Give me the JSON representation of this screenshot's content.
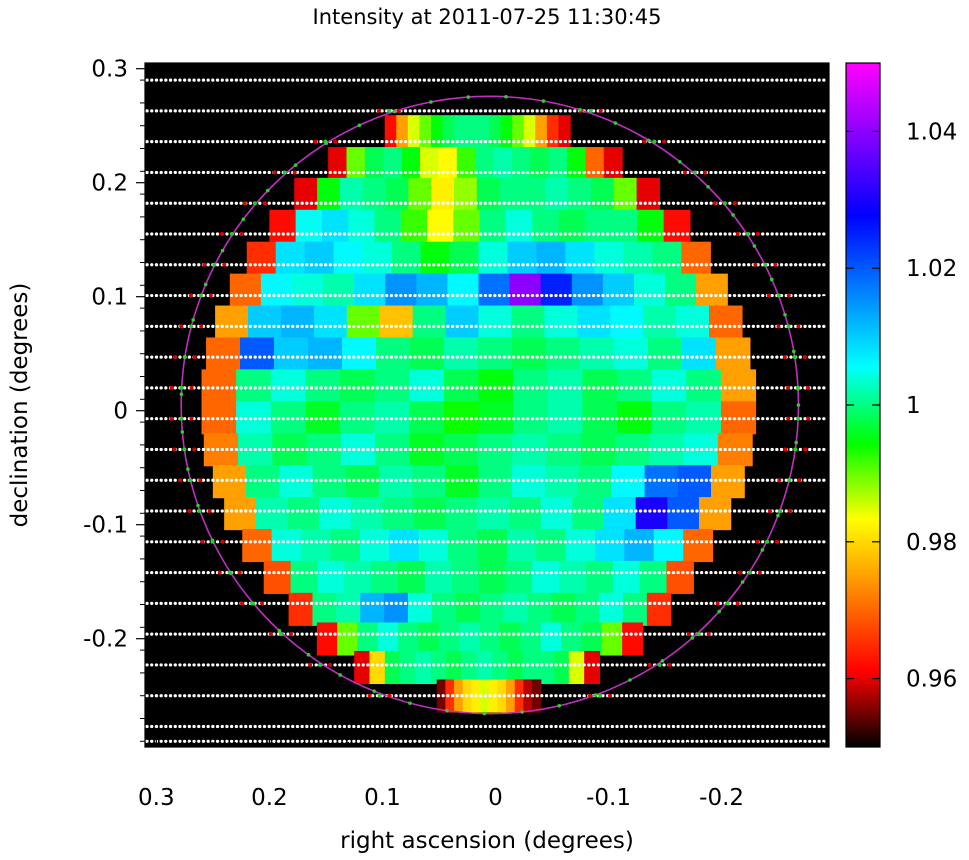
{
  "chart_data": {
    "type": "heatmap",
    "title": "Intensity at 2011-07-25 11:30:45",
    "xlabel": "right ascension (degrees)",
    "ylabel": "declination (degrees)",
    "xlim": [
      0.31,
      -0.295
    ],
    "ylim": [
      -0.295,
      0.305
    ],
    "xticks": [
      "0.3",
      "0.2",
      "0.1",
      "0",
      "-0.1",
      "-0.2"
    ],
    "xtick_values": [
      0.3,
      0.2,
      0.1,
      0,
      -0.1,
      -0.2
    ],
    "yticks": [
      "0.3",
      "0.2",
      "0.1",
      "0",
      "-0.1",
      "-0.2"
    ],
    "ytick_values": [
      0.3,
      0.2,
      0.1,
      0,
      -0.1,
      -0.2
    ],
    "colorbar": {
      "min": 0.95,
      "max": 1.05,
      "ticks": [
        "0.96",
        "0.98",
        "1",
        "1.02",
        "1.04"
      ],
      "tick_values": [
        0.96,
        0.98,
        1.0,
        1.02,
        1.04
      ],
      "colormap": [
        "#000000",
        "#ff0000",
        "#ff8000",
        "#ffff00",
        "#00ff00",
        "#00ffff",
        "#0080ff",
        "#0000ff",
        "#8000ff",
        "#ff00ff"
      ]
    },
    "disk": {
      "center_ra": 0.005,
      "center_dec": 0.005,
      "radius": 0.273
    },
    "limb_circle_color": "#c030c0",
    "scan_dec": [
      0.29,
      0.263,
      0.236,
      0.209,
      0.182,
      0.155,
      0.128,
      0.101,
      0.074,
      0.047,
      0.02,
      -0.007,
      -0.034,
      -0.061,
      -0.088,
      -0.115,
      -0.142,
      -0.169,
      -0.196,
      -0.223,
      -0.25,
      -0.277,
      -0.29
    ],
    "rows": [
      {
        "dec": 0.245,
        "ra_min": -0.066,
        "ra_max": 0.098,
        "values": [
          0.962,
          0.975,
          0.985,
          0.99,
          0.995,
          0.998,
          1.0,
          1.0,
          1.0,
          0.998,
          0.995,
          0.99,
          0.985,
          0.975,
          0.965,
          0.96
        ]
      },
      {
        "dec": 0.217,
        "ra_min": -0.112,
        "ra_max": 0.148,
        "values": [
          0.96,
          0.99,
          0.998,
          1.0,
          0.995,
          0.985,
          0.983,
          0.992,
          1.0,
          1.002,
          1.0,
          0.998,
          1.0,
          0.995,
          0.97,
          0.96
        ]
      },
      {
        "dec": 0.19,
        "ra_min": -0.145,
        "ra_max": 0.178,
        "values": [
          0.96,
          0.995,
          1.002,
          1.0,
          0.998,
          0.99,
          0.982,
          0.988,
          0.998,
          1.0,
          1.0,
          1.002,
          1.0,
          0.998,
          0.99,
          0.96
        ]
      },
      {
        "dec": 0.162,
        "ra_min": -0.172,
        "ra_max": 0.2,
        "values": [
          0.962,
          1.005,
          1.008,
          1.004,
          1.0,
          0.992,
          0.983,
          0.99,
          1.0,
          1.004,
          1.0,
          0.998,
          1.0,
          1.0,
          0.995,
          0.962
        ]
      },
      {
        "dec": 0.134,
        "ra_min": -0.19,
        "ra_max": 0.22,
        "values": [
          0.965,
          1.008,
          1.01,
          1.006,
          1.004,
          1.0,
          0.995,
          0.998,
          1.004,
          1.01,
          1.012,
          1.008,
          1.004,
          1.002,
          1.0,
          0.97
        ]
      },
      {
        "dec": 0.106,
        "ra_min": -0.205,
        "ra_max": 0.235,
        "values": [
          0.97,
          1.006,
          1.004,
          1.002,
          1.008,
          1.015,
          1.012,
          1.006,
          1.018,
          1.04,
          1.025,
          1.015,
          1.01,
          1.004,
          1.0,
          0.975
        ]
      },
      {
        "dec": 0.078,
        "ra_min": -0.218,
        "ra_max": 0.248,
        "values": [
          0.975,
          1.01,
          1.012,
          1.008,
          0.99,
          0.978,
          1.0,
          1.01,
          1.004,
          1.0,
          1.004,
          1.008,
          1.006,
          1.002,
          1.004,
          0.97
        ]
      },
      {
        "dec": 0.05,
        "ra_min": -0.225,
        "ra_max": 0.256,
        "values": [
          0.97,
          1.02,
          1.01,
          1.012,
          1.006,
          1.0,
          0.998,
          1.002,
          1.0,
          0.998,
          1.0,
          1.002,
          1.004,
          1.0,
          1.008,
          0.975
        ]
      },
      {
        "dec": 0.022,
        "ra_min": -0.23,
        "ra_max": 0.26,
        "values": [
          0.97,
          1.0,
          1.004,
          1.0,
          0.998,
          1.0,
          1.004,
          0.998,
          0.995,
          1.0,
          1.002,
          0.998,
          1.0,
          1.004,
          1.0,
          0.975
        ]
      },
      {
        "dec": -0.006,
        "ra_min": -0.23,
        "ra_max": 0.26,
        "values": [
          0.97,
          1.004,
          1.0,
          0.996,
          1.0,
          1.002,
          0.998,
          0.994,
          0.996,
          1.0,
          1.002,
          0.998,
          0.995,
          1.0,
          1.002,
          0.97
        ]
      },
      {
        "dec": -0.034,
        "ra_min": -0.227,
        "ra_max": 0.258,
        "values": [
          0.972,
          1.002,
          0.998,
          1.0,
          1.004,
          1.0,
          0.996,
          0.998,
          1.0,
          1.002,
          1.0,
          0.998,
          1.0,
          1.002,
          1.004,
          0.972
        ]
      },
      {
        "dec": -0.062,
        "ra_min": -0.22,
        "ra_max": 0.25,
        "values": [
          0.975,
          1.0,
          1.004,
          1.0,
          0.998,
          1.002,
          1.0,
          0.996,
          1.0,
          1.004,
          1.002,
          1.0,
          1.006,
          1.018,
          1.02,
          0.975
        ]
      },
      {
        "dec": -0.09,
        "ra_min": -0.208,
        "ra_max": 0.24,
        "values": [
          0.975,
          1.002,
          1.0,
          1.004,
          1.002,
          1.0,
          0.998,
          1.0,
          1.002,
          1.0,
          1.004,
          1.0,
          1.008,
          1.03,
          1.02,
          0.975
        ]
      },
      {
        "dec": -0.118,
        "ra_min": -0.192,
        "ra_max": 0.224,
        "values": [
          0.97,
          1.004,
          1.002,
          1.0,
          1.004,
          1.008,
          1.004,
          1.0,
          0.998,
          1.002,
          1.0,
          1.004,
          1.008,
          1.012,
          1.006,
          0.97
        ]
      },
      {
        "dec": -0.146,
        "ra_min": -0.175,
        "ra_max": 0.205,
        "values": [
          0.968,
          1.0,
          1.004,
          1.002,
          1.0,
          0.998,
          1.002,
          1.0,
          0.998,
          1.0,
          1.004,
          1.002,
          1.0,
          1.004,
          1.0,
          0.968
        ]
      },
      {
        "dec": -0.174,
        "ra_min": -0.155,
        "ra_max": 0.183,
        "values": [
          0.965,
          1.0,
          1.002,
          1.012,
          1.015,
          1.004,
          1.0,
          0.998,
          1.0,
          1.002,
          1.0,
          0.998,
          1.0,
          1.004,
          1.0,
          0.965
        ]
      },
      {
        "dec": -0.2,
        "ra_min": -0.13,
        "ra_max": 0.158,
        "values": [
          0.962,
          0.99,
          1.0,
          1.004,
          1.0,
          0.998,
          1.0,
          1.002,
          1.0,
          0.998,
          1.0,
          1.004,
          1.0,
          0.998,
          0.99,
          0.962
        ]
      },
      {
        "dec": -0.225,
        "ra_min": -0.092,
        "ra_max": 0.125,
        "values": [
          0.96,
          0.98,
          0.998,
          1.0,
          1.002,
          1.0,
          0.998,
          1.0,
          1.002,
          1.0,
          0.998,
          1.0,
          1.0,
          0.998,
          0.985,
          0.96
        ]
      },
      {
        "dec": -0.25,
        "ra_min": -0.04,
        "ra_max": 0.052,
        "values": [
          0.955,
          0.965,
          0.975,
          0.98,
          0.982,
          0.985,
          0.982,
          0.98,
          0.975,
          0.965,
          0.958,
          0.955
        ]
      }
    ],
    "legend": "none",
    "grid": false
  }
}
